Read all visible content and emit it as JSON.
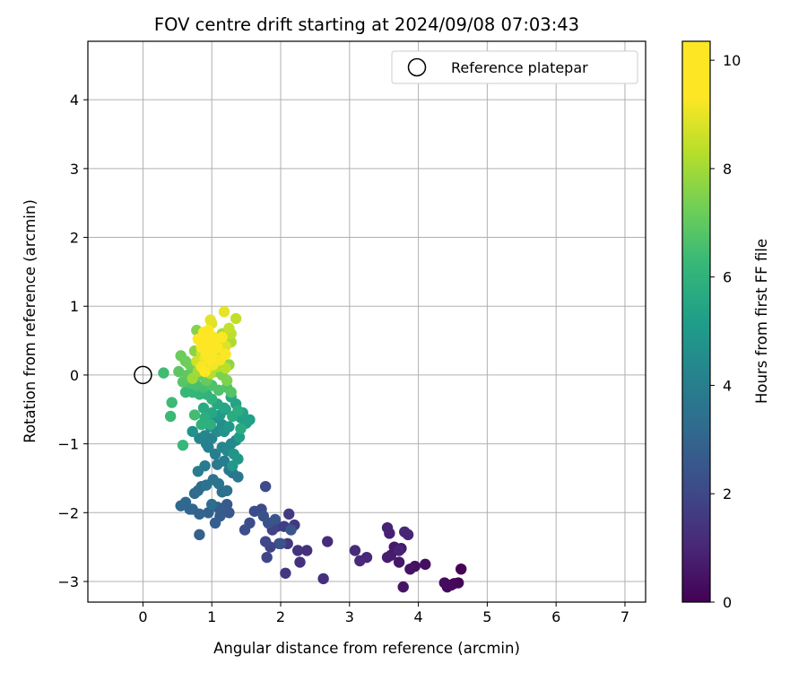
{
  "chart_data": {
    "type": "scatter",
    "title": "FOV centre drift starting at 2024/09/08 07:03:43",
    "xlabel": "Angular distance from reference (arcmin)",
    "ylabel": "Rotation from reference (arcmin)",
    "xlim": [
      -0.8,
      7.3
    ],
    "ylim": [
      -3.3,
      4.85
    ],
    "xticks": [
      "0",
      "1",
      "2",
      "3",
      "4",
      "5",
      "6",
      "7"
    ],
    "yticks": [
      "−3",
      "−2",
      "−1",
      "0",
      "1",
      "2",
      "3",
      "4"
    ],
    "grid": true,
    "legend": {
      "placement": "top-right",
      "entries": [
        "Reference platepar"
      ]
    },
    "reference_point": {
      "x": 0,
      "y": 0
    },
    "colorbar": {
      "label": "Hours from first FF file",
      "colormap": "viridis",
      "range": [
        0,
        10.35
      ],
      "ticks": [
        "0",
        "2",
        "4",
        "6",
        "8",
        "10"
      ]
    },
    "points": [
      [
        4.62,
        -2.82,
        0.05
      ],
      [
        4.58,
        -3.02,
        0.1
      ],
      [
        4.52,
        -3.03,
        0.15
      ],
      [
        4.48,
        -3.05,
        0.2
      ],
      [
        4.42,
        -3.08,
        0.25
      ],
      [
        4.38,
        -3.02,
        0.3
      ],
      [
        4.1,
        -2.75,
        0.35
      ],
      [
        3.95,
        -2.78,
        0.4
      ],
      [
        3.88,
        -2.82,
        0.45
      ],
      [
        3.78,
        -3.08,
        0.5
      ],
      [
        3.72,
        -2.72,
        0.55
      ],
      [
        3.75,
        -2.52,
        0.6
      ],
      [
        3.65,
        -2.5,
        0.65
      ],
      [
        3.6,
        -2.62,
        0.7
      ],
      [
        3.55,
        -2.65,
        0.75
      ],
      [
        3.58,
        -2.3,
        0.8
      ],
      [
        3.55,
        -2.22,
        0.85
      ],
      [
        3.72,
        -2.55,
        0.9
      ],
      [
        3.85,
        -2.32,
        0.95
      ],
      [
        3.8,
        -2.28,
        1.0
      ],
      [
        3.25,
        -2.65,
        1.05
      ],
      [
        3.15,
        -2.7,
        1.1
      ],
      [
        3.08,
        -2.55,
        1.15
      ],
      [
        2.68,
        -2.42,
        1.2
      ],
      [
        2.62,
        -2.96,
        1.25
      ],
      [
        2.38,
        -2.55,
        1.3
      ],
      [
        2.28,
        -2.72,
        1.35
      ],
      [
        2.25,
        -2.55,
        1.4
      ],
      [
        2.1,
        -2.45,
        1.45
      ],
      [
        2.07,
        -2.88,
        1.5
      ],
      [
        2.2,
        -2.18,
        1.55
      ],
      [
        2.12,
        -2.02,
        1.6
      ],
      [
        2.05,
        -2.2,
        1.65
      ],
      [
        1.98,
        -2.45,
        1.7
      ],
      [
        1.95,
        -2.2,
        1.75
      ],
      [
        1.92,
        -2.12,
        1.8
      ],
      [
        1.88,
        -2.25,
        1.85
      ],
      [
        1.85,
        -2.5,
        1.9
      ],
      [
        1.8,
        -2.65,
        1.95
      ],
      [
        1.78,
        -2.42,
        2.0
      ],
      [
        1.72,
        -1.95,
        2.05
      ],
      [
        1.78,
        -1.62,
        2.1
      ],
      [
        1.62,
        -1.98,
        2.15
      ],
      [
        1.55,
        -2.15,
        2.2
      ],
      [
        1.48,
        -2.25,
        2.25
      ],
      [
        1.82,
        -2.15,
        2.3
      ],
      [
        1.75,
        -2.05,
        2.35
      ],
      [
        2.0,
        -2.45,
        2.4
      ],
      [
        1.92,
        -2.1,
        2.45
      ],
      [
        2.15,
        -2.25,
        2.5
      ],
      [
        1.25,
        -2.0,
        2.55
      ],
      [
        1.22,
        -1.88,
        2.6
      ],
      [
        1.18,
        -1.95,
        2.65
      ],
      [
        1.12,
        -2.05,
        2.7
      ],
      [
        1.08,
        -1.92,
        2.75
      ],
      [
        1.05,
        -2.15,
        2.8
      ],
      [
        0.95,
        -2.0,
        2.85
      ],
      [
        0.82,
        -2.32,
        2.9
      ],
      [
        0.82,
        -2.02,
        2.95
      ],
      [
        0.72,
        -1.95,
        3.0
      ],
      [
        0.68,
        -1.95,
        3.05
      ],
      [
        0.62,
        -1.85,
        3.1
      ],
      [
        0.55,
        -1.9,
        3.15
      ],
      [
        0.75,
        -1.72,
        3.2
      ],
      [
        0.8,
        -1.68,
        3.25
      ],
      [
        0.85,
        -1.62,
        3.3
      ],
      [
        1.0,
        -1.88,
        3.35
      ],
      [
        1.15,
        -1.7,
        3.4
      ],
      [
        1.22,
        -1.68,
        3.45
      ],
      [
        0.92,
        -1.6,
        3.5
      ],
      [
        1.1,
        -1.58,
        3.55
      ],
      [
        1.02,
        -1.52,
        3.6
      ],
      [
        1.3,
        -1.42,
        3.65
      ],
      [
        1.38,
        -1.48,
        3.7
      ],
      [
        1.25,
        -1.38,
        3.75
      ],
      [
        1.08,
        -1.3,
        3.8
      ],
      [
        0.9,
        -1.32,
        3.85
      ],
      [
        0.8,
        -1.4,
        3.9
      ],
      [
        1.18,
        -1.25,
        3.95
      ],
      [
        1.05,
        -1.15,
        4.0
      ],
      [
        0.95,
        -1.05,
        4.05
      ],
      [
        0.92,
        -1.0,
        4.1
      ],
      [
        1.0,
        -0.92,
        4.15
      ],
      [
        0.9,
        -0.88,
        4.2
      ],
      [
        0.82,
        -0.92,
        4.25
      ],
      [
        1.15,
        -1.05,
        4.3
      ],
      [
        1.22,
        -1.1,
        4.35
      ],
      [
        1.28,
        -1.0,
        4.4
      ],
      [
        1.35,
        -0.95,
        4.45
      ],
      [
        1.08,
        -0.82,
        4.5
      ],
      [
        0.98,
        -0.75,
        4.55
      ],
      [
        1.15,
        -0.72,
        4.6
      ],
      [
        1.05,
        -0.62,
        4.65
      ],
      [
        0.72,
        -0.82,
        4.7
      ],
      [
        0.95,
        -0.6,
        4.75
      ],
      [
        1.18,
        -0.82,
        4.8
      ],
      [
        1.32,
        -1.15,
        4.85
      ],
      [
        1.38,
        -1.22,
        4.9
      ],
      [
        1.3,
        -1.32,
        4.95
      ],
      [
        1.25,
        -0.75,
        5.0
      ],
      [
        1.12,
        -0.58,
        5.05
      ],
      [
        1.2,
        -0.5,
        5.1
      ],
      [
        1.4,
        -0.9,
        5.15
      ],
      [
        1.42,
        -0.62,
        5.2
      ],
      [
        1.5,
        -0.7,
        5.25
      ],
      [
        1.55,
        -0.65,
        5.3
      ],
      [
        1.45,
        -0.55,
        5.35
      ],
      [
        1.35,
        -0.42,
        5.4
      ],
      [
        1.28,
        -0.32,
        5.45
      ],
      [
        1.18,
        -0.48,
        5.5
      ],
      [
        1.08,
        -0.42,
        5.55
      ],
      [
        1.0,
        -0.55,
        5.6
      ],
      [
        0.88,
        -0.48,
        5.65
      ],
      [
        1.42,
        -0.78,
        5.7
      ],
      [
        1.3,
        -0.6,
        5.75
      ],
      [
        1.38,
        -0.52,
        5.8
      ],
      [
        0.9,
        -0.62,
        5.85
      ],
      [
        0.98,
        -0.72,
        5.9
      ],
      [
        0.85,
        -0.72,
        5.95
      ],
      [
        1.0,
        -0.35,
        6.0
      ],
      [
        0.92,
        -0.28,
        6.05
      ],
      [
        0.82,
        -0.28,
        6.1
      ],
      [
        0.72,
        -0.25,
        6.15
      ],
      [
        0.62,
        -0.25,
        6.2
      ],
      [
        0.58,
        -1.02,
        6.25
      ],
      [
        0.4,
        -0.6,
        6.3
      ],
      [
        0.42,
        -0.4,
        6.35
      ],
      [
        0.3,
        0.03,
        6.4
      ],
      [
        0.75,
        -0.58,
        6.45
      ],
      [
        0.88,
        -0.18,
        6.5
      ],
      [
        0.78,
        -0.15,
        6.55
      ],
      [
        0.68,
        -0.12,
        6.6
      ],
      [
        1.0,
        -0.15,
        6.65
      ],
      [
        1.1,
        -0.22,
        6.7
      ],
      [
        1.22,
        -0.18,
        6.75
      ],
      [
        1.28,
        -0.25,
        6.8
      ],
      [
        0.58,
        -0.1,
        6.85
      ],
      [
        0.52,
        0.05,
        6.9
      ],
      [
        0.65,
        0.0,
        6.95
      ],
      [
        0.72,
        0.08,
        7.0
      ],
      [
        0.82,
        0.0,
        7.05
      ],
      [
        0.92,
        -0.08,
        7.1
      ],
      [
        0.55,
        0.28,
        7.15
      ],
      [
        0.62,
        0.2,
        7.2
      ],
      [
        0.68,
        0.15,
        7.25
      ],
      [
        0.8,
        0.1,
        7.3
      ],
      [
        0.88,
        0.15,
        7.35
      ],
      [
        1.05,
        0.05,
        7.4
      ],
      [
        1.15,
        0.0,
        7.45
      ],
      [
        1.22,
        -0.08,
        7.5
      ],
      [
        0.78,
        0.65,
        7.55
      ],
      [
        0.85,
        0.5,
        7.6
      ],
      [
        0.75,
        0.35,
        7.65
      ],
      [
        0.95,
        0.3,
        7.7
      ],
      [
        1.25,
        0.15,
        7.75
      ],
      [
        1.18,
        0.3,
        7.8
      ],
      [
        1.02,
        0.2,
        7.85
      ],
      [
        0.9,
        0.1,
        7.9
      ],
      [
        0.72,
        -0.05,
        7.95
      ],
      [
        0.8,
        0.05,
        8.0
      ],
      [
        1.1,
        0.45,
        8.05
      ],
      [
        1.15,
        0.6,
        8.1
      ],
      [
        1.28,
        0.48,
        8.15
      ],
      [
        1.0,
        0.4,
        8.2
      ],
      [
        1.08,
        0.12,
        8.25
      ],
      [
        0.98,
        0.02,
        8.3
      ],
      [
        1.2,
        0.1,
        8.35
      ],
      [
        1.28,
        0.6,
        8.4
      ],
      [
        1.35,
        0.82,
        8.45
      ],
      [
        1.25,
        0.68,
        8.5
      ],
      [
        0.92,
        0.55,
        8.55
      ],
      [
        0.85,
        0.32,
        8.6
      ],
      [
        0.78,
        0.2,
        8.65
      ],
      [
        0.95,
        0.12,
        8.7
      ],
      [
        1.05,
        0.32,
        8.75
      ],
      [
        1.12,
        0.38,
        8.8
      ],
      [
        1.2,
        0.42,
        8.85
      ],
      [
        1.0,
        0.75,
        8.9
      ],
      [
        0.98,
        0.8,
        8.95
      ],
      [
        1.18,
        0.92,
        9.0
      ],
      [
        0.88,
        0.42,
        9.05
      ],
      [
        0.9,
        0.25,
        9.1
      ],
      [
        1.02,
        0.15,
        9.15
      ],
      [
        1.12,
        0.22,
        9.2
      ],
      [
        0.85,
        0.12,
        9.25
      ],
      [
        0.95,
        0.45,
        9.3
      ],
      [
        1.05,
        0.5,
        9.35
      ],
      [
        1.15,
        0.55,
        9.4
      ],
      [
        0.8,
        0.52,
        9.45
      ],
      [
        0.88,
        0.62,
        9.5
      ],
      [
        0.95,
        0.65,
        9.55
      ],
      [
        1.02,
        0.55,
        9.6
      ],
      [
        0.9,
        0.05,
        9.65
      ],
      [
        0.98,
        0.22,
        9.7
      ],
      [
        1.08,
        0.4,
        9.75
      ],
      [
        1.2,
        0.3,
        9.8
      ],
      [
        0.92,
        0.3,
        9.85
      ],
      [
        0.85,
        0.4,
        9.9
      ],
      [
        0.95,
        0.6,
        9.95
      ],
      [
        0.88,
        0.55,
        10.0
      ],
      [
        1.02,
        0.42,
        10.05
      ],
      [
        0.98,
        0.35,
        10.1
      ],
      [
        0.92,
        0.48,
        10.15
      ],
      [
        0.95,
        0.52,
        10.2
      ],
      [
        0.9,
        0.62,
        10.25
      ],
      [
        1.0,
        0.28,
        10.3
      ],
      [
        0.98,
        0.45,
        10.33
      ]
    ]
  }
}
